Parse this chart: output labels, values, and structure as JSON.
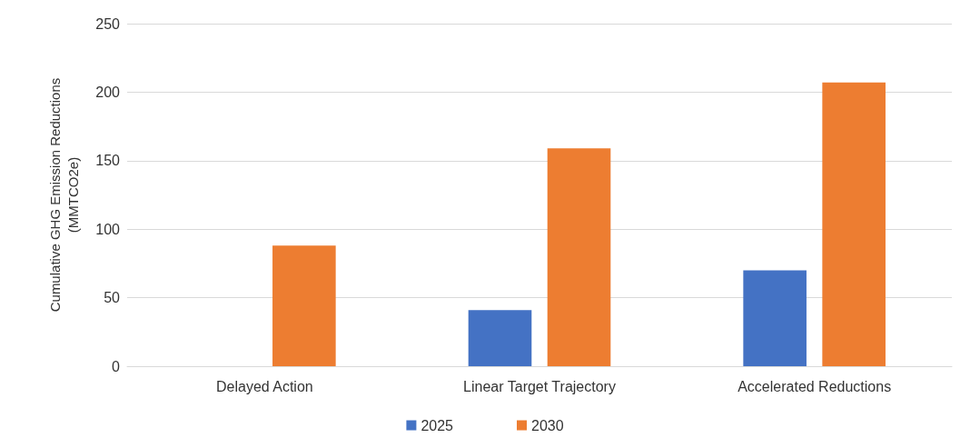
{
  "chart_data": {
    "type": "bar",
    "ylabel": "Cumulative GHG Emission Reductions\n(MMTCO2e)",
    "categories": [
      "Delayed Action",
      "Linear Target Trajectory",
      "Accelerated Reductions"
    ],
    "series": [
      {
        "name": "2025",
        "color": "#4472c4",
        "values": [
          null,
          41,
          70
        ]
      },
      {
        "name": "2030",
        "color": "#ed7d31",
        "values": [
          88,
          159,
          207
        ]
      }
    ],
    "ylim": [
      0,
      250
    ],
    "yticks": [
      0,
      50,
      100,
      150,
      200,
      250
    ],
    "grid": "y",
    "legend": "bottom"
  }
}
